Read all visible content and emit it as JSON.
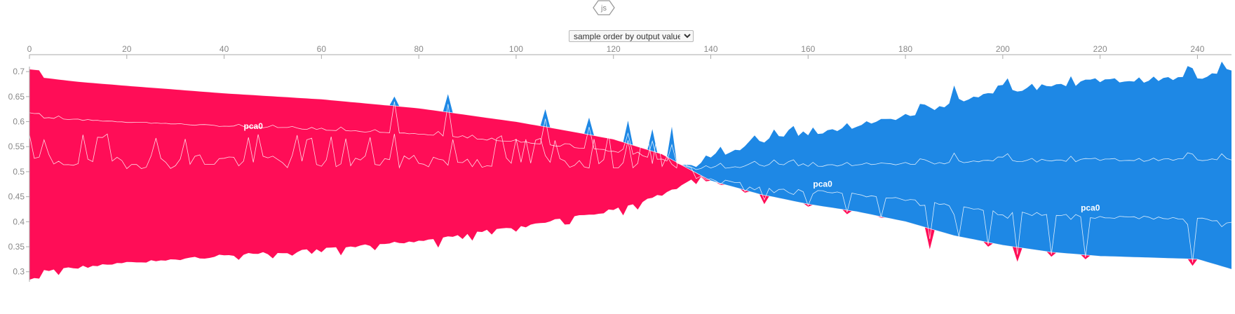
{
  "logo": {
    "text": "js"
  },
  "ordering": {
    "selected": "sample order by output value",
    "options": [
      "sample order by output value"
    ]
  },
  "colors": {
    "positive": "#ff0d57",
    "negative": "#1e88e5",
    "axis": "#aaaaaa",
    "tick_text": "#888888",
    "separator": "#ffffff"
  },
  "chart_data": {
    "type": "area",
    "title": "",
    "xlabel": "",
    "ylabel": "",
    "xlim": [
      0,
      247
    ],
    "ylim": [
      0.28,
      0.71
    ],
    "x_ticks": [
      0,
      20,
      40,
      60,
      80,
      100,
      120,
      140,
      160,
      180,
      200,
      220,
      240
    ],
    "y_ticks": [
      0.3,
      0.35,
      0.4,
      0.45,
      0.5,
      0.55,
      0.6,
      0.65,
      0.7
    ],
    "x_tick_labels": [
      "0",
      "20",
      "40",
      "60",
      "80",
      "100",
      "120",
      "140",
      "160",
      "180",
      "200",
      "220",
      "240"
    ],
    "y_tick_labels": [
      "0.3",
      "0.35",
      "0.4",
      "0.45",
      "0.5",
      "0.55",
      "0.6",
      "0.65",
      "0.7"
    ],
    "base_value": 0.5,
    "output_profile": {
      "x": [
        0,
        2,
        3,
        10,
        20,
        40,
        60,
        80,
        100,
        110,
        120,
        130,
        135,
        140,
        150,
        160,
        170,
        180,
        190,
        200,
        210,
        220,
        240,
        247
      ],
      "y": [
        0.705,
        0.703,
        0.688,
        0.68,
        0.672,
        0.657,
        0.645,
        0.627,
        0.6,
        0.583,
        0.565,
        0.535,
        0.508,
        0.482,
        0.455,
        0.435,
        0.42,
        0.4,
        0.372,
        0.353,
        0.339,
        0.331,
        0.325,
        0.305
      ]
    },
    "red_dips": [
      {
        "x": 137,
        "y": 0.475
      },
      {
        "x": 147,
        "y": 0.458
      },
      {
        "x": 151,
        "y": 0.435
      },
      {
        "x": 160,
        "y": 0.43
      },
      {
        "x": 168,
        "y": 0.415
      },
      {
        "x": 175,
        "y": 0.408
      },
      {
        "x": 185,
        "y": 0.345
      },
      {
        "x": 191,
        "y": 0.37
      },
      {
        "x": 197,
        "y": 0.35
      },
      {
        "x": 203,
        "y": 0.32
      },
      {
        "x": 210,
        "y": 0.33
      },
      {
        "x": 217,
        "y": 0.325
      },
      {
        "x": 239,
        "y": 0.312
      }
    ],
    "blue_spikes": [
      {
        "x": 75,
        "y": 0.65
      },
      {
        "x": 86,
        "y": 0.655
      },
      {
        "x": 106,
        "y": 0.625
      },
      {
        "x": 115,
        "y": 0.608
      },
      {
        "x": 123,
        "y": 0.602
      },
      {
        "x": 128,
        "y": 0.585
      },
      {
        "x": 132,
        "y": 0.59
      }
    ],
    "labels": [
      {
        "text": "pca0",
        "x": 46,
        "y": 0.585
      },
      {
        "text": "pca0",
        "x": 163,
        "y": 0.47
      },
      {
        "text": "pca0",
        "x": 218,
        "y": 0.422
      }
    ]
  }
}
